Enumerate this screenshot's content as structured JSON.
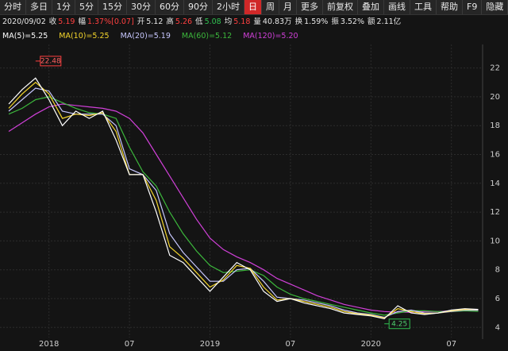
{
  "toolbar": {
    "periods": [
      "分时",
      "多日",
      "1分",
      "5分",
      "15分",
      "30分",
      "60分",
      "90分",
      "2小时",
      "日",
      "周",
      "月",
      "更多"
    ],
    "active": "日",
    "tools": [
      "前复权",
      "叠加",
      "画线",
      "工具",
      "帮助",
      "F9",
      "隐藏"
    ]
  },
  "quote": {
    "date": "2020/09/02",
    "items": [
      {
        "label": "收",
        "value": "5.19",
        "color": "#ff4040"
      },
      {
        "label": "幅",
        "value": "1.37%[0.07]",
        "color": "#ff4040"
      },
      {
        "label": "开",
        "value": "5.12",
        "color": "#e8e8e8"
      },
      {
        "label": "高",
        "value": "5.26",
        "color": "#ff4040"
      },
      {
        "label": "低",
        "value": "5.08",
        "color": "#30c050"
      },
      {
        "label": "均",
        "value": "5.18",
        "color": "#ff4040"
      },
      {
        "label": "量",
        "value": "40.83万",
        "color": "#e8e8e8"
      },
      {
        "label": "换",
        "value": "1.59%",
        "color": "#e8e8e8"
      },
      {
        "label": "振",
        "value": "3.52%",
        "color": "#e8e8e8"
      },
      {
        "label": "额",
        "value": "2.11亿",
        "color": "#e8e8e8"
      }
    ]
  },
  "chart_data": {
    "type": "line",
    "categories": [
      null,
      null,
      null,
      "2018",
      null,
      null,
      null,
      null,
      null,
      "07",
      null,
      null,
      null,
      null,
      null,
      "2019",
      null,
      null,
      null,
      null,
      null,
      "07",
      null,
      null,
      null,
      null,
      null,
      "2020",
      null,
      null,
      null,
      null,
      null,
      "07",
      null,
      null
    ],
    "series": [
      {
        "name": "MA(5)=5.25",
        "color": "#ffffff",
        "values": [
          19.5,
          20.5,
          21.3,
          19.8,
          18.0,
          19.0,
          18.5,
          19.0,
          17.0,
          14.6,
          14.6,
          12.0,
          9.0,
          8.5,
          7.5,
          6.5,
          7.5,
          8.5,
          8.0,
          6.5,
          5.8,
          6.0,
          5.7,
          5.5,
          5.3,
          5.0,
          4.9,
          4.8,
          4.6,
          5.5,
          5.0,
          4.9,
          5.0,
          5.2,
          5.3,
          5.25
        ]
      },
      {
        "name": "MA(10)=5.25",
        "color": "#f5d62c",
        "values": [
          19.2,
          20.2,
          21.0,
          20.2,
          18.5,
          18.8,
          18.7,
          18.9,
          17.6,
          14.6,
          14.6,
          12.8,
          9.6,
          8.8,
          7.8,
          6.8,
          7.3,
          8.3,
          8.1,
          6.8,
          5.9,
          6.0,
          5.8,
          5.6,
          5.4,
          5.1,
          4.95,
          4.85,
          4.65,
          5.3,
          5.1,
          4.95,
          5.0,
          5.15,
          5.25,
          5.25
        ]
      },
      {
        "name": "MA(20)=5.19",
        "color": "#c8c8ff",
        "values": [
          19.0,
          19.8,
          20.6,
          20.4,
          19.0,
          18.8,
          18.8,
          18.8,
          18.0,
          15.0,
          14.6,
          13.5,
          10.5,
          9.2,
          8.2,
          7.2,
          7.2,
          8.0,
          8.1,
          7.2,
          6.1,
          6.0,
          5.9,
          5.7,
          5.5,
          5.2,
          5.0,
          4.9,
          4.7,
          5.1,
          5.2,
          5.0,
          5.0,
          5.1,
          5.2,
          5.19
        ]
      },
      {
        "name": "MA(60)=5.12",
        "color": "#3cb83c",
        "values": [
          18.8,
          19.2,
          19.8,
          20.0,
          19.6,
          19.2,
          18.9,
          18.8,
          18.5,
          16.5,
          14.8,
          13.8,
          12.0,
          10.5,
          9.3,
          8.3,
          7.8,
          7.9,
          8.0,
          7.6,
          6.8,
          6.3,
          6.0,
          5.8,
          5.6,
          5.4,
          5.2,
          5.0,
          4.85,
          5.0,
          5.15,
          5.15,
          5.1,
          5.1,
          5.15,
          5.12
        ]
      },
      {
        "name": "MA(120)=5.20",
        "color": "#d040d8",
        "values": [
          17.6,
          18.2,
          18.8,
          19.3,
          19.5,
          19.4,
          19.3,
          19.2,
          19.0,
          18.5,
          17.5,
          16.0,
          14.5,
          13.0,
          11.5,
          10.2,
          9.4,
          8.9,
          8.5,
          8.0,
          7.4,
          7.0,
          6.6,
          6.2,
          5.9,
          5.6,
          5.4,
          5.2,
          5.1,
          5.05,
          5.05,
          5.1,
          5.1,
          5.15,
          5.2,
          5.2
        ]
      }
    ],
    "high": 22.48,
    "low": 4.25,
    "ylim": [
      3.3,
      23.3
    ],
    "yticks": [
      4,
      6,
      8,
      10,
      12,
      14,
      16,
      18,
      20,
      22
    ],
    "grid": true
  }
}
